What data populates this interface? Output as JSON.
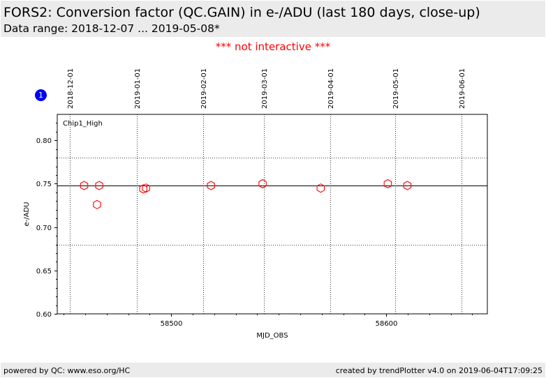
{
  "header": {
    "title": "FORS2: Conversion factor (QC.GAIN) in e-/ADU (last 180 days, close-up)",
    "subtitle": "Data range: 2018-12-07 ... 2019-05-08*"
  },
  "notice": "*** not interactive ***",
  "badge": "1",
  "colors": {
    "marker": "#ff0000",
    "notice": "#ff0000",
    "badge": "#0000ee",
    "bar": "#ebebeb"
  },
  "footer": {
    "left": "powered by QC: www.eso.org/HC",
    "right": "created by trendPlotter v4.0 on 2019-06-04T17:09:25"
  },
  "chart_data": {
    "type": "scatter",
    "panel_label": "Chip1_High",
    "xlabel": "MJD_OBS",
    "ylabel": "e-/ADU",
    "xlim": [
      58447,
      58647
    ],
    "ylim": [
      0.6,
      0.83
    ],
    "x_ticks": [
      58500,
      58600
    ],
    "y_ticks": [
      "0.60",
      "0.65",
      "0.70",
      "0.75",
      "0.80"
    ],
    "date_ticks": [
      {
        "label": "2018-12-01",
        "mjd": 58453
      },
      {
        "label": "2019-01-01",
        "mjd": 58484
      },
      {
        "label": "2019-02-01",
        "mjd": 58515
      },
      {
        "label": "2019-03-01",
        "mjd": 58543
      },
      {
        "label": "2019-04-01",
        "mjd": 58574
      },
      {
        "label": "2019-05-01",
        "mjd": 58604
      },
      {
        "label": "2019-06-01",
        "mjd": 58635
      }
    ],
    "reference_line": 0.748,
    "threshold_lines": [
      0.78,
      0.68
    ],
    "marker": "hexagon",
    "points": [
      {
        "x": 58459.5,
        "y": 0.748
      },
      {
        "x": 58465.5,
        "y": 0.726
      },
      {
        "x": 58466.5,
        "y": 0.748
      },
      {
        "x": 58487.0,
        "y": 0.744
      },
      {
        "x": 58488.3,
        "y": 0.745
      },
      {
        "x": 58518.5,
        "y": 0.748
      },
      {
        "x": 58542.5,
        "y": 0.75
      },
      {
        "x": 58569.5,
        "y": 0.745
      },
      {
        "x": 58600.7,
        "y": 0.75
      },
      {
        "x": 58609.8,
        "y": 0.748
      }
    ]
  }
}
